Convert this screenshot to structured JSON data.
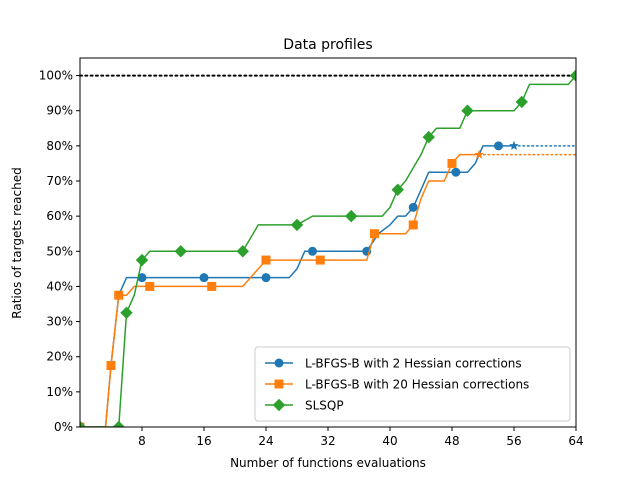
{
  "chart_data": {
    "type": "line",
    "title": "Data profiles",
    "xlabel": "Number of functions evaluations",
    "ylabel": "Ratios of targets reached",
    "xlim": [
      0,
      64
    ],
    "ylim": [
      0,
      1.05
    ],
    "xticks": [
      8,
      16,
      24,
      32,
      40,
      48,
      56,
      64
    ],
    "xtick_labels": [
      "8",
      "16",
      "24",
      "32",
      "40",
      "48",
      "56",
      "64"
    ],
    "yticks": [
      0,
      0.1,
      0.2,
      0.3,
      0.4,
      0.5,
      0.6,
      0.7,
      0.8,
      0.9,
      1.0
    ],
    "ytick_labels": [
      "0%",
      "10%",
      "20%",
      "30%",
      "40%",
      "50%",
      "60%",
      "70%",
      "80%",
      "90%",
      "100%"
    ],
    "reference_line": {
      "y": 1.0,
      "style": "dotted",
      "color": "#000000"
    },
    "legend_position": "lower-right",
    "series": [
      {
        "name": "L-BFGS-B with 2 Hessian corrections",
        "color": "#1f77b4",
        "marker": "circle",
        "x": [
          0,
          2.5,
          3.3,
          4.0,
          5.0,
          6.0,
          8.0,
          12.0,
          16.0,
          20.0,
          24.0,
          27.0,
          28.0,
          29.0,
          30.0,
          32.0,
          35.0,
          37.0,
          38.5,
          40.0,
          41.0,
          42.0,
          43.0,
          44.0,
          45.0,
          47.0,
          48.5,
          50.0,
          51.0,
          52.0,
          54.0,
          56.0
        ],
        "y": [
          0,
          0,
          0,
          0.175,
          0.375,
          0.425,
          0.425,
          0.425,
          0.425,
          0.425,
          0.425,
          0.425,
          0.45,
          0.5,
          0.5,
          0.5,
          0.5,
          0.5,
          0.55,
          0.575,
          0.6,
          0.6,
          0.625,
          0.675,
          0.725,
          0.725,
          0.725,
          0.725,
          0.75,
          0.8,
          0.8,
          0.8
        ],
        "markers": [
          [
            0,
            0
          ],
          [
            5.0,
            0.375
          ],
          [
            8.0,
            0.425
          ],
          [
            16.0,
            0.425
          ],
          [
            24.0,
            0.425
          ],
          [
            30.0,
            0.5
          ],
          [
            37.0,
            0.5
          ],
          [
            43.0,
            0.625
          ],
          [
            48.5,
            0.725
          ],
          [
            54.0,
            0.8
          ]
        ],
        "end_marker": [
          56,
          0.8
        ],
        "dotted_tail": [
          [
            56,
            0.8
          ],
          [
            64,
            0.8
          ]
        ]
      },
      {
        "name": "L-BFGS-B with 20 Hessian corrections",
        "color": "#ff7f0e",
        "marker": "square",
        "x": [
          0,
          2.5,
          3.3,
          4.0,
          5.0,
          6.0,
          7.0,
          9.0,
          13.0,
          17.0,
          21.0,
          23.0,
          24.0,
          28.0,
          31.0,
          35.0,
          37.0,
          38.0,
          40.0,
          42.0,
          43.0,
          44.0,
          45.0,
          47.0,
          48.0,
          49.0,
          50.5,
          51.5
        ],
        "y": [
          0,
          0,
          0,
          0.175,
          0.375,
          0.375,
          0.4,
          0.4,
          0.4,
          0.4,
          0.4,
          0.45,
          0.475,
          0.475,
          0.475,
          0.475,
          0.475,
          0.55,
          0.55,
          0.55,
          0.575,
          0.65,
          0.7,
          0.7,
          0.75,
          0.775,
          0.775,
          0.775
        ],
        "markers": [
          [
            0,
            0
          ],
          [
            4.0,
            0.175
          ],
          [
            5.0,
            0.375
          ],
          [
            9.0,
            0.4
          ],
          [
            17.0,
            0.4
          ],
          [
            24.0,
            0.475
          ],
          [
            31.0,
            0.475
          ],
          [
            38.0,
            0.55
          ],
          [
            43.0,
            0.575
          ],
          [
            48.0,
            0.75
          ]
        ],
        "end_marker": [
          51.5,
          0.775
        ],
        "dotted_tail": [
          [
            51.5,
            0.775
          ],
          [
            64,
            0.775
          ]
        ]
      },
      {
        "name": "SLSQP",
        "color": "#2ca02c",
        "marker": "diamond",
        "x": [
          0,
          2.5,
          4.5,
          5.0,
          6.0,
          7.0,
          7.5,
          8.0,
          9.0,
          13.0,
          21.0,
          23.0,
          28.0,
          30.0,
          35.0,
          39.0,
          40.0,
          41.0,
          42.0,
          44.0,
          45.0,
          46.0,
          49.0,
          50.0,
          54.0,
          55.0,
          56.0,
          57.0,
          58.0,
          63.0,
          64.0
        ],
        "y": [
          0,
          0,
          0,
          0,
          0.325,
          0.375,
          0.425,
          0.475,
          0.5,
          0.5,
          0.5,
          0.575,
          0.575,
          0.6,
          0.6,
          0.6,
          0.625,
          0.675,
          0.7,
          0.775,
          0.825,
          0.85,
          0.85,
          0.9,
          0.9,
          0.9,
          0.9,
          0.925,
          0.975,
          0.975,
          1.0
        ],
        "markers": [
          [
            0,
            0
          ],
          [
            5.0,
            0
          ],
          [
            6.0,
            0.325
          ],
          [
            8.0,
            0.475
          ],
          [
            13.0,
            0.5
          ],
          [
            21.0,
            0.5
          ],
          [
            28.0,
            0.575
          ],
          [
            35.0,
            0.6
          ],
          [
            41.0,
            0.675
          ],
          [
            45.0,
            0.825
          ],
          [
            50.0,
            0.9
          ],
          [
            57.0,
            0.925
          ],
          [
            64.0,
            1.0
          ]
        ]
      }
    ]
  }
}
